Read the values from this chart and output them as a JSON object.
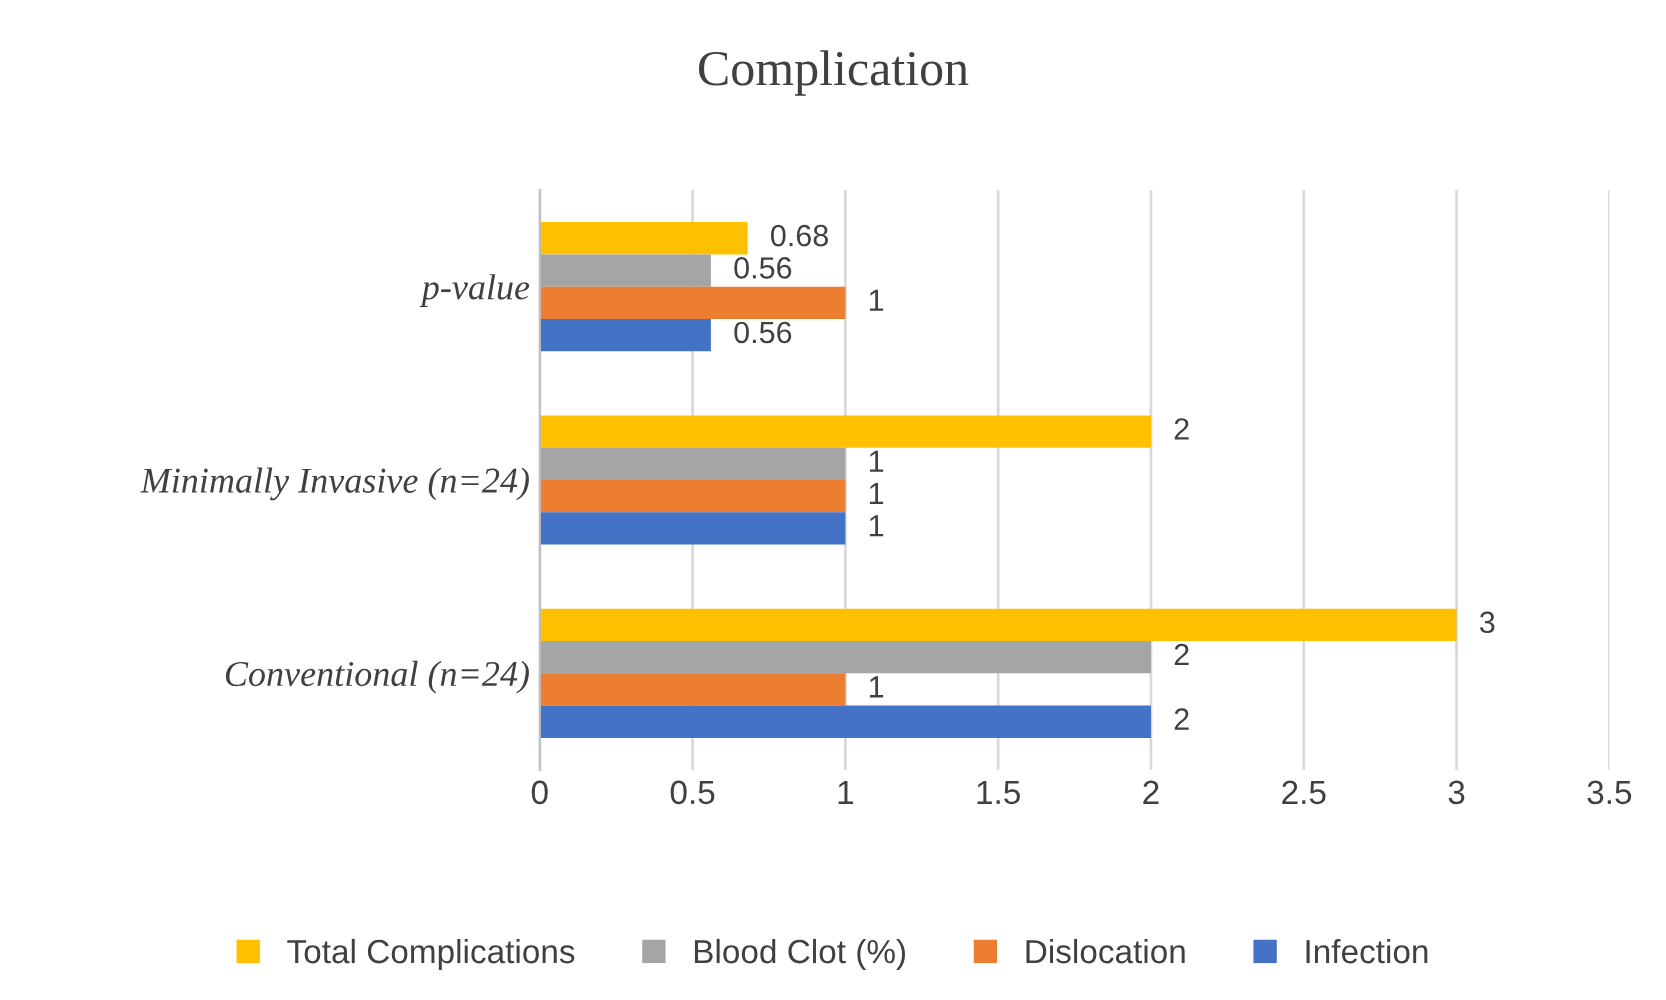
{
  "chart_data": {
    "type": "bar",
    "orientation": "horizontal",
    "title": "Complication",
    "categories": [
      "p-value",
      "Minimally Invasive (n=24)",
      "Conventional (n=24)"
    ],
    "series": [
      {
        "name": "Total Complications",
        "color": "#ffc000",
        "values": [
          0.68,
          2,
          3
        ]
      },
      {
        "name": "Blood Clot (%)",
        "color": "#a5a5a5",
        "values": [
          0.56,
          1,
          2
        ]
      },
      {
        "name": "Dislocation",
        "color": "#ed7d31",
        "values": [
          1,
          1,
          1
        ]
      },
      {
        "name": "Infection",
        "color": "#4472c4",
        "values": [
          0.56,
          1,
          2
        ]
      }
    ],
    "xlim": [
      0,
      3.5
    ],
    "xticks": [
      0,
      0.5,
      1,
      1.5,
      2,
      2.5,
      3,
      3.5
    ],
    "grid": "x",
    "legend": "bottom",
    "data_labels": true
  }
}
